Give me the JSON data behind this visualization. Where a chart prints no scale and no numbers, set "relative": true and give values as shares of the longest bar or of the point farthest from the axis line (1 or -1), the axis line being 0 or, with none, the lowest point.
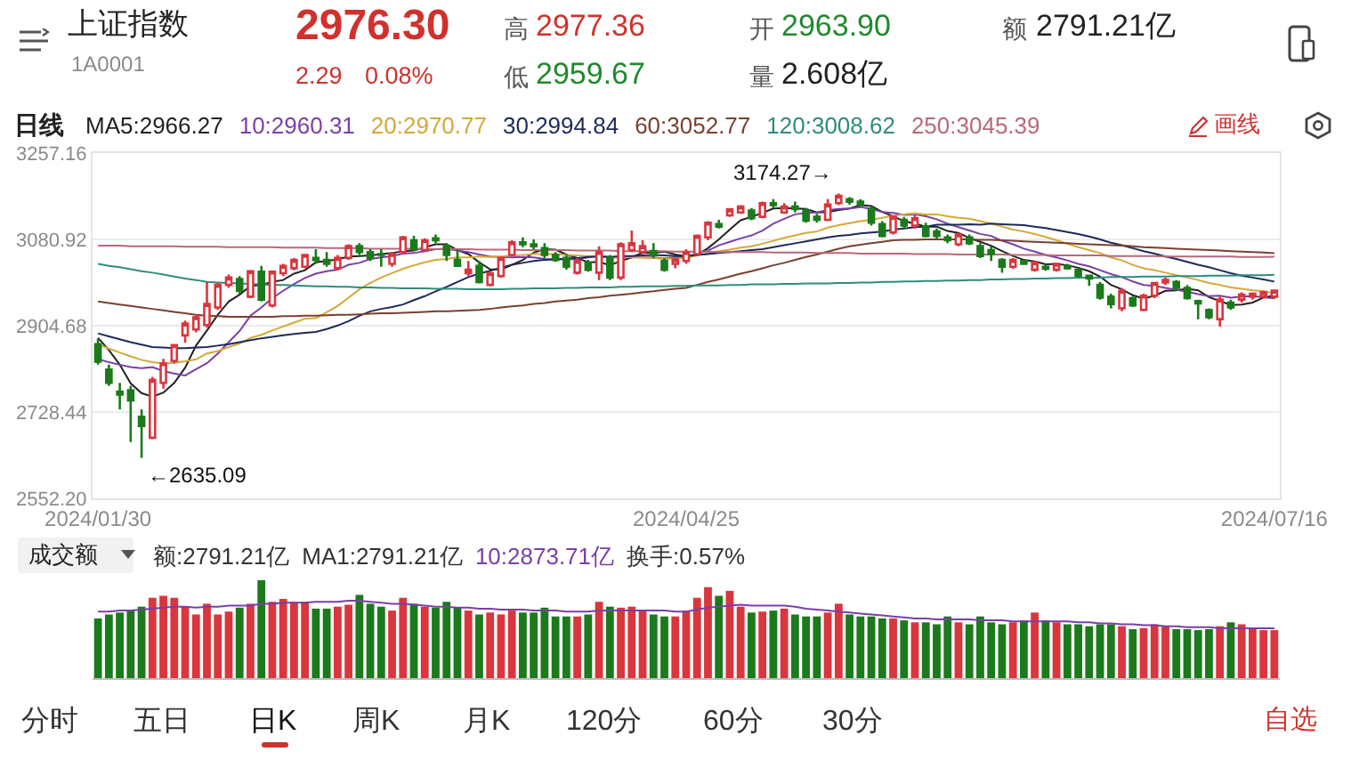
{
  "chart_data": [
    {
      "type": "other",
      "title": "上证指数",
      "subtitle": "1A0001",
      "annotations": [
        "2976.30",
        "2.29",
        "0.08%",
        "高",
        "2977.36",
        "低",
        "2959.67",
        "开",
        "2963.90",
        "量",
        "2.608亿",
        "额",
        "2791.21亿",
        "分时",
        "五日",
        "日K",
        "周K",
        "月K",
        "120分",
        "60分",
        "30分",
        "自选",
        "画线"
      ]
    },
    {
      "type": "candlestick",
      "title": "日线",
      "categories": [
        "2024/01/30",
        null,
        null,
        null,
        null,
        null,
        null,
        null,
        null,
        null,
        null,
        null,
        null,
        null,
        null,
        null,
        null,
        null,
        null,
        null,
        null,
        null,
        null,
        null,
        null,
        null,
        null,
        null,
        null,
        null,
        null,
        null,
        null,
        null,
        null,
        null,
        null,
        null,
        null,
        null,
        null,
        null,
        null,
        null,
        null,
        null,
        null,
        null,
        null,
        null,
        null,
        null,
        null,
        null,
        "2024/04/25",
        null,
        null,
        null,
        null,
        null,
        null,
        null,
        null,
        null,
        null,
        null,
        null,
        null,
        null,
        null,
        null,
        null,
        null,
        null,
        null,
        null,
        null,
        null,
        null,
        null,
        null,
        null,
        null,
        null,
        null,
        null,
        null,
        null,
        null,
        null,
        null,
        null,
        null,
        null,
        null,
        null,
        null,
        null,
        null,
        null,
        null,
        null,
        null,
        null,
        null,
        null,
        null,
        null,
        "2024/07/16"
      ],
      "ohlc": [
        [
          2867,
          2879,
          2825,
          2831
        ],
        [
          2815,
          2825,
          2782,
          2788
        ],
        [
          2770,
          2788,
          2734,
          2764
        ],
        [
          2773,
          2782,
          2667,
          2752
        ],
        [
          2719,
          2734,
          2635.09,
          2700
        ],
        [
          2676,
          2800,
          2673,
          2794
        ],
        [
          2788,
          2837,
          2776,
          2828
        ],
        [
          2833,
          2867,
          2828,
          2865
        ],
        [
          2885,
          2915,
          2870,
          2909
        ],
        [
          2897,
          2928,
          2891,
          2922
        ],
        [
          2906,
          2994,
          2901,
          2949
        ],
        [
          2942,
          2992,
          2937,
          2988
        ],
        [
          2988,
          3009,
          2982,
          3003
        ],
        [
          3000,
          3006,
          2970,
          2976
        ],
        [
          2964,
          3018,
          2961,
          3016
        ],
        [
          3015,
          3027,
          2954,
          2958
        ],
        [
          2946,
          3018,
          2942,
          3015
        ],
        [
          3012,
          3031,
          3006,
          3027
        ],
        [
          3022,
          3043,
          3018,
          3039
        ],
        [
          3025,
          3051,
          3022,
          3049
        ],
        [
          3043,
          3061,
          3031,
          3039
        ],
        [
          3039,
          3055,
          3025,
          3031
        ],
        [
          3022,
          3049,
          3018,
          3043
        ],
        [
          3043,
          3071,
          3039,
          3067
        ],
        [
          3067,
          3073,
          3049,
          3055
        ],
        [
          3055,
          3061,
          3037,
          3043
        ],
        [
          3051,
          3061,
          3025,
          3049
        ],
        [
          3031,
          3055,
          3025,
          3051
        ],
        [
          3055,
          3088,
          3051,
          3085
        ],
        [
          3079,
          3088,
          3057,
          3061
        ],
        [
          3059,
          3083,
          3055,
          3079
        ],
        [
          3083,
          3091,
          3073,
          3079
        ],
        [
          3067,
          3073,
          3037,
          3049
        ],
        [
          3039,
          3061,
          3025,
          3027
        ],
        [
          3012,
          3037,
          3006,
          3019
        ],
        [
          3027,
          3037,
          2991,
          2994
        ],
        [
          2988,
          3015,
          2985,
          3012
        ],
        [
          3006,
          3046,
          3003,
          3043
        ],
        [
          3049,
          3079,
          3046,
          3075
        ],
        [
          3075,
          3085,
          3065,
          3071
        ],
        [
          3071,
          3081,
          3061,
          3067
        ],
        [
          3063,
          3073,
          3043,
          3049
        ],
        [
          3049,
          3055,
          3035,
          3039
        ],
        [
          3043,
          3049,
          3019,
          3025
        ],
        [
          3013,
          3043,
          3009,
          3037
        ],
        [
          3033,
          3039,
          3015,
          3019
        ],
        [
          3013,
          3067,
          2998,
          3055
        ],
        [
          3043,
          3049,
          2998,
          3003
        ],
        [
          3003,
          3075,
          2998,
          3071
        ],
        [
          3059,
          3099,
          3055,
          3073
        ],
        [
          3055,
          3079,
          3051,
          3067
        ],
        [
          3057,
          3073,
          3043,
          3049
        ],
        [
          3037,
          3043,
          3015,
          3019
        ],
        [
          3031,
          3043,
          3022,
          3040
        ],
        [
          3037,
          3061,
          3031,
          3055
        ],
        [
          3051,
          3091,
          3049,
          3088
        ],
        [
          3085,
          3118,
          3079,
          3115
        ],
        [
          3112,
          3121,
          3103,
          3107
        ],
        [
          3130,
          3145,
          3127,
          3142
        ],
        [
          3136,
          3151,
          3133,
          3148
        ],
        [
          3140,
          3145,
          3120,
          3124
        ],
        [
          3127,
          3158,
          3124,
          3155
        ],
        [
          3155,
          3163,
          3145,
          3151
        ],
        [
          3136,
          3155,
          3133,
          3148
        ],
        [
          3148,
          3158,
          3136,
          3143
        ],
        [
          3140,
          3145,
          3115,
          3119
        ],
        [
          3127,
          3133,
          3115,
          3121
        ],
        [
          3121,
          3163,
          3118,
          3152
        ],
        [
          3155,
          3174.27,
          3151,
          3170
        ],
        [
          3163,
          3167,
          3152,
          3158
        ],
        [
          3158,
          3163,
          3148,
          3152
        ],
        [
          3143,
          3148,
          3109,
          3115
        ],
        [
          3112,
          3118,
          3085,
          3088
        ],
        [
          3095,
          3130,
          3091,
          3127
        ],
        [
          3121,
          3127,
          3103,
          3109
        ],
        [
          3109,
          3130,
          3103,
          3124
        ],
        [
          3107,
          3115,
          3085,
          3088
        ],
        [
          3097,
          3103,
          3082,
          3088
        ],
        [
          3085,
          3091,
          3073,
          3079
        ],
        [
          3071,
          3094,
          3067,
          3091
        ],
        [
          3085,
          3091,
          3069,
          3073
        ],
        [
          3067,
          3073,
          3043,
          3047
        ],
        [
          3059,
          3067,
          3037,
          3051
        ],
        [
          3039,
          3043,
          3013,
          3025
        ],
        [
          3025,
          3043,
          3021,
          3039
        ],
        [
          3037,
          3037,
          3031,
          3031
        ],
        [
          3019,
          3037,
          3015,
          3034
        ],
        [
          3025,
          3031,
          3017,
          3021
        ],
        [
          3019,
          3033,
          3015,
          3031
        ],
        [
          3027,
          3031,
          3019,
          3022
        ],
        [
          3019,
          3021,
          3003,
          3007
        ],
        [
          3007,
          3009,
          2986,
          3001
        ],
        [
          2988,
          2994,
          2958,
          2962
        ],
        [
          2964,
          2970,
          2940,
          2949
        ],
        [
          2940,
          2982,
          2934,
          2976
        ],
        [
          2961,
          2964,
          2943,
          2946
        ],
        [
          2937,
          2970,
          2934,
          2966
        ],
        [
          2966,
          2994,
          2961,
          2992
        ],
        [
          2993,
          3003,
          2988,
          2998
        ],
        [
          2994,
          2998,
          2976,
          2982
        ],
        [
          2982,
          2988,
          2958,
          2961
        ],
        [
          2955,
          2958,
          2918,
          2950
        ],
        [
          2937,
          2940,
          2918,
          2922
        ],
        [
          2918,
          2964,
          2903,
          2958
        ],
        [
          2952,
          2958,
          2937,
          2942
        ],
        [
          2958,
          2973,
          2952,
          2968
        ],
        [
          2964,
          2973,
          2958,
          2970
        ],
        [
          2964,
          2976,
          2961,
          2973
        ],
        [
          2963.9,
          2977.36,
          2959.67,
          2976.3
        ]
      ],
      "colors": [
        "#1b7a1b",
        "#1b7a1b",
        "#1b7a1b",
        "#1b7a1b",
        "#1b7a1b",
        "#d9363e",
        "#d9363e",
        "#d9363e",
        "#d9363e",
        "#d9363e",
        "#d9363e",
        "#d9363e",
        "#d9363e",
        "#1b7a1b",
        "#d9363e",
        "#1b7a1b",
        "#d9363e",
        "#d9363e",
        "#d9363e",
        "#d9363e",
        "#1b7a1b",
        "#1b7a1b",
        "#d9363e",
        "#d9363e",
        "#1b7a1b",
        "#1b7a1b",
        "#1b7a1b",
        "#d9363e",
        "#d9363e",
        "#1b7a1b",
        "#d9363e",
        "#1b7a1b",
        "#1b7a1b",
        "#1b7a1b",
        "#d9363e",
        "#1b7a1b",
        "#d9363e",
        "#d9363e",
        "#d9363e",
        "#1b7a1b",
        "#1b7a1b",
        "#1b7a1b",
        "#1b7a1b",
        "#1b7a1b",
        "#d9363e",
        "#1b7a1b",
        "#d9363e",
        "#1b7a1b",
        "#d9363e",
        "#d9363e",
        "#d9363e",
        "#1b7a1b",
        "#1b7a1b",
        "#d9363e",
        "#d9363e",
        "#d9363e",
        "#d9363e",
        "#1b7a1b",
        "#d9363e",
        "#d9363e",
        "#1b7a1b",
        "#d9363e",
        "#1b7a1b",
        "#d9363e",
        "#1b7a1b",
        "#1b7a1b",
        "#1b7a1b",
        "#d9363e",
        "#d9363e",
        "#1b7a1b",
        "#1b7a1b",
        "#1b7a1b",
        "#1b7a1b",
        "#d9363e",
        "#1b7a1b",
        "#d9363e",
        "#1b7a1b",
        "#1b7a1b",
        "#1b7a1b",
        "#d9363e",
        "#1b7a1b",
        "#1b7a1b",
        "#1b7a1b",
        "#1b7a1b",
        "#d9363e",
        "#1b7a1b",
        "#d9363e",
        "#1b7a1b",
        "#d9363e",
        "#1b7a1b",
        "#1b7a1b",
        "#1b7a1b",
        "#1b7a1b",
        "#1b7a1b",
        "#d9363e",
        "#1b7a1b",
        "#d9363e",
        "#d9363e",
        "#d9363e",
        "#1b7a1b",
        "#1b7a1b",
        "#1b7a1b",
        "#1b7a1b",
        "#d9363e",
        "#1b7a1b",
        "#d9363e",
        "#d9363e",
        "#d9363e",
        "#d9363e"
      ],
      "ylim": [
        2552.2,
        3257.16
      ],
      "yticks": [
        {
          "value": 2552.2,
          "label": "2552.20"
        },
        2728.44,
        2904.68,
        3080.92,
        3257.16
      ],
      "grid": "y",
      "annotations": [
        "3174.27→",
        "←2635.09"
      ],
      "series": [
        {
          "name": "MA5:2966.27",
          "type": "line",
          "color": "#222222",
          "values": [
            2880,
            2855,
            2825,
            2787,
            2767,
            2760,
            2768,
            2788,
            2819,
            2864,
            2895,
            2927,
            2954,
            2968,
            2986,
            2988,
            2994,
            2998,
            3011,
            3018,
            3034,
            3037,
            3040,
            3046,
            3047,
            3048,
            3051,
            3053,
            3057,
            3058,
            3065,
            3071,
            3071,
            3059,
            3051,
            3034,
            3020,
            3019,
            3029,
            3039,
            3054,
            3061,
            3060,
            3050,
            3043,
            3034,
            3035,
            3028,
            3037,
            3044,
            3054,
            3053,
            3056,
            3050,
            3046,
            3050,
            3063,
            3081,
            3101,
            3120,
            3127,
            3135,
            3144,
            3145,
            3144,
            3143,
            3136,
            3137,
            3141,
            3144,
            3151,
            3149,
            3137,
            3128,
            3118,
            3113,
            3107,
            3107,
            3098,
            3094,
            3084,
            3076,
            3068,
            3057,
            3047,
            3039,
            3036,
            3030,
            3031,
            3028,
            3023,
            3016,
            3005,
            2988,
            2979,
            2967,
            2960,
            2966,
            2976,
            2977,
            2980,
            2977,
            2963,
            2955,
            2947,
            2948,
            2952,
            2962,
            2966.27
          ]
        },
        {
          "name": "10:2960.31",
          "type": "line",
          "color": "#7b3fa6",
          "values": [
            2837,
            2830,
            2825,
            2820,
            2818,
            2820,
            2812,
            2807,
            2803,
            2816,
            2828,
            2848,
            2871,
            2894,
            2925,
            2942,
            2961,
            2976,
            2990,
            3002,
            3011,
            3016,
            3019,
            3029,
            3033,
            3041,
            3044,
            3047,
            3052,
            3053,
            3057,
            3061,
            3062,
            3058,
            3055,
            3050,
            3046,
            3045,
            3044,
            3045,
            3044,
            3041,
            3040,
            3040,
            3041,
            3044,
            3048,
            3044,
            3044,
            3044,
            3044,
            3044,
            3042,
            3044,
            3045,
            3052,
            3058,
            3069,
            3076,
            3083,
            3089,
            3099,
            3113,
            3123,
            3132,
            3135,
            3136,
            3141,
            3143,
            3144,
            3147,
            3143,
            3137,
            3135,
            3131,
            3132,
            3128,
            3122,
            3113,
            3106,
            3099,
            3092,
            3088,
            3078,
            3071,
            3062,
            3056,
            3049,
            3044,
            3038,
            3031,
            3026,
            3018,
            3010,
            3004,
            2995,
            2988,
            2986,
            2982,
            2978,
            2974,
            2969,
            2965,
            2966,
            2962,
            2964,
            2965,
            2963,
            2960.31
          ]
        },
        {
          "name": "20:2970.77",
          "type": "line",
          "color": "#d4a838",
          "values": [
            2867,
            2858,
            2850,
            2842,
            2835,
            2830,
            2828,
            2829,
            2832,
            2836,
            2848,
            2853,
            2861,
            2868,
            2880,
            2886,
            2895,
            2903,
            2911,
            2919,
            2920,
            2932,
            2945,
            2962,
            2979,
            2992,
            3003,
            3012,
            3021,
            3028,
            3034,
            3039,
            3041,
            3044,
            3044,
            3046,
            3045,
            3046,
            3048,
            3049,
            3051,
            3051,
            3051,
            3049,
            3048,
            3047,
            3047,
            3045,
            3044,
            3045,
            3044,
            3043,
            3041,
            3042,
            3043,
            3048,
            3053,
            3057,
            3060,
            3064,
            3067,
            3072,
            3078,
            3084,
            3089,
            3094,
            3097,
            3105,
            3110,
            3114,
            3118,
            3121,
            3125,
            3129,
            3132,
            3134,
            3132,
            3132,
            3128,
            3125,
            3123,
            3118,
            3113,
            3107,
            3101,
            3097,
            3092,
            3086,
            3079,
            3072,
            3065,
            3059,
            3053,
            3044,
            3038,
            3029,
            3022,
            3018,
            3013,
            3008,
            3003,
            2998,
            2992,
            2988,
            2983,
            2980,
            2977,
            2975,
            2970.77
          ]
        },
        {
          "name": "30:2994.84",
          "type": "line",
          "color": "#1c2a5c",
          "values": [
            2889,
            2883,
            2877,
            2871,
            2866,
            2861,
            2860,
            2859,
            2859,
            2860,
            2861,
            2864,
            2867,
            2871,
            2875,
            2879,
            2882,
            2885,
            2888,
            2890,
            2892,
            2898,
            2905,
            2914,
            2925,
            2934,
            2939,
            2943,
            2948,
            2957,
            2965,
            2975,
            2984,
            2994,
            3004,
            3011,
            3017,
            3023,
            3029,
            3033,
            3037,
            3039,
            3040,
            3042,
            3043,
            3045,
            3046,
            3045,
            3047,
            3047,
            3048,
            3049,
            3048,
            3047,
            3047,
            3049,
            3051,
            3053,
            3055,
            3057,
            3059,
            3061,
            3065,
            3069,
            3073,
            3077,
            3081,
            3085,
            3088,
            3090,
            3093,
            3095,
            3097,
            3101,
            3103,
            3106,
            3107,
            3111,
            3111,
            3111,
            3112,
            3111,
            3113,
            3112,
            3111,
            3110,
            3107,
            3104,
            3100,
            3096,
            3092,
            3087,
            3081,
            3074,
            3069,
            3063,
            3057,
            3052,
            3046,
            3041,
            3035,
            3029,
            3024,
            3018,
            3012,
            3007,
            3003,
            2999,
            2994.84
          ]
        },
        {
          "name": "60:3052.77",
          "type": "line",
          "color": "#7a4030",
          "values": [
            2954,
            2951,
            2948,
            2945,
            2942,
            2939,
            2936,
            2933,
            2930,
            2927,
            2925,
            2924,
            2923,
            2923,
            2923,
            2923,
            2923,
            2924,
            2924,
            2925,
            2925,
            2926,
            2927,
            2927,
            2928,
            2929,
            2930,
            2930,
            2931,
            2932,
            2933,
            2934,
            2934,
            2935,
            2936,
            2937,
            2939,
            2942,
            2944,
            2946,
            2949,
            2951,
            2954,
            2956,
            2958,
            2961,
            2963,
            2966,
            2968,
            2970,
            2973,
            2975,
            2978,
            2980,
            2982,
            2988,
            2994,
            2999,
            3005,
            3011,
            3016,
            3022,
            3028,
            3033,
            3039,
            3045,
            3050,
            3056,
            3062,
            3067,
            3070,
            3073,
            3076,
            3079,
            3080,
            3080,
            3081,
            3081,
            3081,
            3081,
            3081,
            3080,
            3080,
            3079,
            3078,
            3077,
            3076,
            3075,
            3074,
            3073,
            3072,
            3071,
            3070,
            3069,
            3068,
            3067,
            3065,
            3064,
            3063,
            3062,
            3061,
            3060,
            3059,
            3058,
            3057,
            3056,
            3055,
            3054,
            3052.77
          ]
        },
        {
          "name": "120:3008.62",
          "type": "line",
          "color": "#2f8c7c",
          "values": [
            3031,
            3027,
            3024,
            3020,
            3016,
            3013,
            3009,
            3005,
            3001,
            2998,
            2994,
            2993,
            2992,
            2991,
            2990,
            2989,
            2988,
            2988,
            2987,
            2986,
            2985,
            2985,
            2984,
            2984,
            2983,
            2983,
            2982,
            2982,
            2981,
            2981,
            2981,
            2980,
            2980,
            2980,
            2979,
            2979,
            2979,
            2979,
            2980,
            2980,
            2981,
            2981,
            2981,
            2982,
            2982,
            2983,
            2983,
            2983,
            2984,
            2984,
            2985,
            2985,
            2985,
            2986,
            2986,
            2987,
            2987,
            2987,
            2988,
            2988,
            2989,
            2989,
            2989,
            2990,
            2990,
            2991,
            2991,
            2991,
            2992,
            2992,
            2993,
            2993,
            2994,
            2994,
            2995,
            2995,
            2996,
            2996,
            2997,
            2997,
            2998,
            2998,
            2999,
            2999,
            3000,
            3000,
            3001,
            3001,
            3002,
            3002,
            3003,
            3003,
            3003,
            3004,
            3004,
            3004,
            3005,
            3005,
            3005,
            3006,
            3006,
            3006,
            3007,
            3007,
            3007,
            3008,
            3008,
            3008,
            3008.62
          ]
        },
        {
          "name": "250:3045.39",
          "type": "line",
          "color": "#b8687a",
          "values": [
            3068,
            3068,
            3068,
            3067,
            3067,
            3067,
            3067,
            3067,
            3066,
            3066,
            3066,
            3066,
            3065,
            3065,
            3065,
            3065,
            3065,
            3064,
            3064,
            3064,
            3064,
            3063,
            3063,
            3063,
            3063,
            3062,
            3062,
            3062,
            3062,
            3062,
            3061,
            3061,
            3061,
            3061,
            3061,
            3060,
            3060,
            3060,
            3060,
            3059,
            3059,
            3059,
            3059,
            3059,
            3058,
            3058,
            3058,
            3058,
            3057,
            3057,
            3057,
            3057,
            3057,
            3056,
            3056,
            3056,
            3056,
            3055,
            3055,
            3055,
            3055,
            3055,
            3054,
            3054,
            3054,
            3054,
            3053,
            3053,
            3053,
            3053,
            3052,
            3052,
            3052,
            3052,
            3052,
            3051,
            3051,
            3051,
            3051,
            3050,
            3050,
            3050,
            3050,
            3050,
            3049,
            3049,
            3049,
            3049,
            3048,
            3048,
            3048,
            3048,
            3048,
            3047,
            3047,
            3047,
            3047,
            3047,
            3046,
            3046,
            3046,
            3046,
            3046,
            3046,
            3046,
            3045,
            3045,
            3045,
            3045.39
          ]
        }
      ]
    },
    {
      "type": "bar",
      "title": "成交额",
      "relative": true,
      "categories": [
        null,
        null,
        null,
        null,
        null,
        null,
        null,
        null,
        null,
        null,
        null,
        null,
        null,
        null,
        null,
        null,
        null,
        null,
        null,
        null,
        null,
        null,
        null,
        null,
        null,
        null,
        null,
        null,
        null,
        null,
        null,
        null,
        null,
        null,
        null,
        null,
        null,
        null,
        null,
        null,
        null,
        null,
        null,
        null,
        null,
        null,
        null,
        null,
        null,
        null,
        null,
        null,
        null,
        null,
        null,
        null,
        null,
        null,
        null,
        null,
        null,
        null,
        null,
        null,
        null,
        null,
        null,
        null,
        null,
        null,
        null,
        null,
        null,
        null,
        null,
        null,
        null,
        null,
        null,
        null,
        null,
        null,
        null,
        null,
        null,
        null,
        null,
        null,
        null,
        null,
        null,
        null,
        null,
        null,
        null,
        null,
        null,
        null,
        null,
        null,
        null,
        null,
        null,
        null,
        null,
        null,
        null,
        null,
        null
      ],
      "annotations": [
        "额:2791.21亿",
        "MA1:2791.21亿",
        "换手:0.57%"
      ],
      "series": [
        {
          "type": "bar",
          "colors": [
            "#1b7a1b",
            "#1b7a1b",
            "#1b7a1b",
            "#1b7a1b",
            "#1b7a1b",
            "#d9363e",
            "#d9363e",
            "#d9363e",
            "#d9363e",
            "#d9363e",
            "#d9363e",
            "#d9363e",
            "#d9363e",
            "#1b7a1b",
            "#d9363e",
            "#1b7a1b",
            "#d9363e",
            "#d9363e",
            "#d9363e",
            "#d9363e",
            "#1b7a1b",
            "#1b7a1b",
            "#d9363e",
            "#d9363e",
            "#1b7a1b",
            "#1b7a1b",
            "#1b7a1b",
            "#d9363e",
            "#d9363e",
            "#1b7a1b",
            "#d9363e",
            "#1b7a1b",
            "#1b7a1b",
            "#1b7a1b",
            "#d9363e",
            "#1b7a1b",
            "#d9363e",
            "#d9363e",
            "#d9363e",
            "#1b7a1b",
            "#1b7a1b",
            "#1b7a1b",
            "#1b7a1b",
            "#1b7a1b",
            "#d9363e",
            "#1b7a1b",
            "#d9363e",
            "#1b7a1b",
            "#d9363e",
            "#d9363e",
            "#d9363e",
            "#1b7a1b",
            "#1b7a1b",
            "#d9363e",
            "#d9363e",
            "#d9363e",
            "#d9363e",
            "#1b7a1b",
            "#d9363e",
            "#d9363e",
            "#1b7a1b",
            "#d9363e",
            "#1b7a1b",
            "#d9363e",
            "#1b7a1b",
            "#1b7a1b",
            "#1b7a1b",
            "#d9363e",
            "#d9363e",
            "#1b7a1b",
            "#1b7a1b",
            "#1b7a1b",
            "#1b7a1b",
            "#d9363e",
            "#1b7a1b",
            "#d9363e",
            "#1b7a1b",
            "#1b7a1b",
            "#1b7a1b",
            "#d9363e",
            "#1b7a1b",
            "#1b7a1b",
            "#1b7a1b",
            "#1b7a1b",
            "#d9363e",
            "#1b7a1b",
            "#d9363e",
            "#1b7a1b",
            "#d9363e",
            "#1b7a1b",
            "#1b7a1b",
            "#1b7a1b",
            "#1b7a1b",
            "#1b7a1b",
            "#d9363e",
            "#1b7a1b",
            "#d9363e",
            "#d9363e",
            "#d9363e",
            "#1b7a1b",
            "#1b7a1b",
            "#1b7a1b",
            "#1b7a1b",
            "#d9363e",
            "#1b7a1b",
            "#d9363e",
            "#d9363e",
            "#d9363e",
            "#d9363e"
          ],
          "values": [
            0.61,
            0.65,
            0.67,
            0.69,
            0.73,
            0.82,
            0.84,
            0.82,
            0.73,
            0.65,
            0.76,
            0.65,
            0.68,
            0.72,
            0.76,
            1,
            0.78,
            0.81,
            0.78,
            0.78,
            0.71,
            0.71,
            0.73,
            0.75,
            0.85,
            0.76,
            0.73,
            0.69,
            0.82,
            0.76,
            0.73,
            0.72,
            0.78,
            0.72,
            0.69,
            0.65,
            0.67,
            0.65,
            0.69,
            0.67,
            0.67,
            0.72,
            0.63,
            0.63,
            0.63,
            0.65,
            0.78,
            0.73,
            0.72,
            0.73,
            0.69,
            0.65,
            0.63,
            0.63,
            0.69,
            0.82,
            0.93,
            0.84,
            0.89,
            0.73,
            0.67,
            0.68,
            0.69,
            0.71,
            0.65,
            0.63,
            0.63,
            0.67,
            0.76,
            0.65,
            0.63,
            0.63,
            0.61,
            0.61,
            0.59,
            0.57,
            0.57,
            0.55,
            0.63,
            0.57,
            0.55,
            0.63,
            0.57,
            0.55,
            0.57,
            0.59,
            0.67,
            0.59,
            0.57,
            0.55,
            0.55,
            0.53,
            0.55,
            0.55,
            0.53,
            0.5,
            0.51,
            0.55,
            0.53,
            0.5,
            0.5,
            0.49,
            0.5,
            0.53,
            0.57,
            0.55,
            0.5,
            0.49,
            0.49
          ]
        },
        {
          "type": "line",
          "name": "10:2873.71亿",
          "color": "#7b3fa6",
          "values": [
            0.68,
            0.68,
            0.69,
            0.69,
            0.7,
            0.71,
            0.72,
            0.73,
            0.73,
            0.72,
            0.73,
            0.73,
            0.74,
            0.74,
            0.74,
            0.76,
            0.76,
            0.77,
            0.77,
            0.77,
            0.78,
            0.78,
            0.78,
            0.79,
            0.79,
            0.78,
            0.77,
            0.76,
            0.76,
            0.75,
            0.74,
            0.73,
            0.73,
            0.72,
            0.72,
            0.71,
            0.71,
            0.7,
            0.7,
            0.7,
            0.69,
            0.69,
            0.69,
            0.68,
            0.68,
            0.68,
            0.69,
            0.69,
            0.69,
            0.69,
            0.69,
            0.69,
            0.69,
            0.68,
            0.68,
            0.7,
            0.72,
            0.73,
            0.74,
            0.75,
            0.74,
            0.74,
            0.74,
            0.74,
            0.73,
            0.71,
            0.7,
            0.69,
            0.68,
            0.67,
            0.66,
            0.65,
            0.64,
            0.63,
            0.62,
            0.61,
            0.61,
            0.6,
            0.6,
            0.6,
            0.6,
            0.59,
            0.59,
            0.59,
            0.58,
            0.58,
            0.58,
            0.58,
            0.58,
            0.58,
            0.57,
            0.57,
            0.56,
            0.56,
            0.55,
            0.55,
            0.54,
            0.54,
            0.53,
            0.53,
            0.52,
            0.52,
            0.52,
            0.51,
            0.51,
            0.51,
            0.51,
            0.51,
            0.51
          ]
        }
      ]
    }
  ]
}
